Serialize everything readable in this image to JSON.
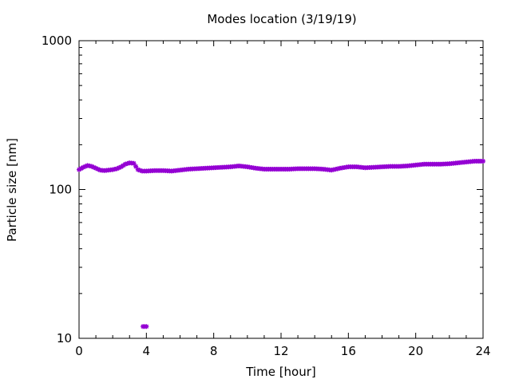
{
  "chart_data": {
    "type": "scatter",
    "title": "Modes location (3/19/19)",
    "xlabel": "Time [hour]",
    "ylabel": "Particle size [nm]",
    "xlim": [
      0,
      24
    ],
    "ylim": [
      10,
      1000
    ],
    "yscale": "log",
    "grid": false,
    "legend": "none",
    "x_ticks": [
      0,
      4,
      8,
      12,
      16,
      20,
      24
    ],
    "x_tick_labels": [
      "0",
      "4",
      "8",
      "12",
      "16",
      "20",
      "24"
    ],
    "y_ticks": [
      10,
      100,
      1000
    ],
    "y_tick_labels": [
      "10",
      "100",
      "1000"
    ],
    "marker_color": "#9400d3",
    "series": [
      {
        "x": [
          0,
          0.25,
          0.5,
          0.75,
          1,
          1.25,
          1.5,
          1.75,
          2,
          2.25,
          2.5,
          2.75,
          3,
          3.25,
          3.5,
          3.75,
          4,
          4.5,
          5,
          5.5,
          6,
          6.5,
          7,
          7.5,
          8,
          8.5,
          9,
          9.5,
          10,
          10.5,
          11,
          11.5,
          12,
          12.5,
          13,
          13.5,
          14,
          14.5,
          15,
          15.5,
          16,
          16.5,
          17,
          17.5,
          18,
          18.5,
          19,
          19.5,
          20,
          20.5,
          21,
          21.5,
          22,
          22.5,
          23,
          23.5,
          24
        ],
        "y": [
          136,
          141,
          145,
          143,
          139,
          135,
          134,
          135,
          136,
          138,
          142,
          148,
          151,
          150,
          136,
          133,
          133,
          134,
          134,
          133,
          135,
          137,
          138,
          139,
          140,
          141,
          142,
          144,
          142,
          139,
          137,
          137,
          137,
          137,
          138,
          138,
          138,
          137,
          135,
          139,
          142,
          142,
          140,
          141,
          142,
          143,
          143,
          144,
          146,
          148,
          148,
          148,
          149,
          151,
          153,
          155,
          155
        ]
      },
      {
        "x": [
          3.8,
          3.9,
          4.0
        ],
        "y": [
          12,
          12,
          12
        ]
      }
    ]
  }
}
